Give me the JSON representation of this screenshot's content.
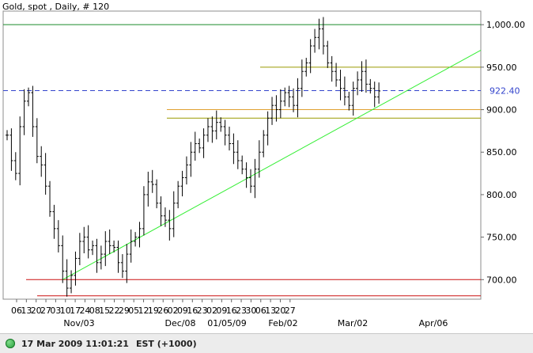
{
  "chart_data": {
    "type": "ohlc",
    "title": "Gold, spot , Daily, # 120",
    "ylim": [
      677,
      1016
    ],
    "yticks": [
      700,
      750,
      800,
      850,
      900,
      950,
      1000
    ],
    "ytick_labels": [
      "700.00",
      "750.00",
      "800.00",
      "850.00",
      "900.00",
      "950.00",
      "1,000.00"
    ],
    "current_price": 922.4,
    "current_price_label": "922.40",
    "x_day_labels": [
      "06",
      "13",
      "20",
      "27",
      "03",
      "10",
      "17",
      "24",
      "08",
      "15",
      "22",
      "29",
      "05",
      "12",
      "19",
      "26",
      "02",
      "09",
      "16",
      "23",
      "02",
      "09",
      "16",
      "23",
      "30",
      "06",
      "13",
      "20",
      "27"
    ],
    "x_month_labels": [
      "Nov/03",
      "Dec/08",
      "01/05/09",
      "Feb/02",
      "Mar/02",
      "Apr/06"
    ],
    "close": [
      870,
      840,
      825,
      880,
      910,
      920,
      880,
      845,
      835,
      810,
      780,
      760,
      740,
      710,
      690,
      705,
      725,
      745,
      750,
      735,
      740,
      720,
      730,
      745,
      740,
      738,
      720,
      710,
      730,
      745,
      750,
      760,
      800,
      815,
      812,
      790,
      775,
      770,
      760,
      790,
      810,
      820,
      835,
      850,
      860,
      855,
      870,
      880,
      875,
      885,
      880,
      870,
      860,
      850,
      840,
      830,
      820,
      810,
      830,
      850,
      870,
      890,
      905,
      900,
      910,
      920,
      915,
      905,
      925,
      945,
      955,
      975,
      985,
      995,
      975,
      955,
      945,
      935,
      925,
      915,
      905,
      925,
      935,
      945,
      930,
      925,
      915,
      922
    ],
    "annotations": {
      "horizontal_lines": [
        1000,
        950,
        922.4,
        900,
        890,
        700,
        681
      ],
      "trendline": [
        [
          700,
          13
        ],
        [
          970,
          87
        ]
      ]
    }
  },
  "status": {
    "timestamp": "17 Mar 2009 11:01:21",
    "timezone": "EST (+1000)"
  },
  "colors": {
    "bars": "#000000",
    "dashed_line": "#3344cc",
    "green_line": "#1a8a2a",
    "olive_line": "#9a9a00",
    "orange_line": "#e0a030",
    "red_line": "#cc1111",
    "trend_line": "#33ee33"
  }
}
